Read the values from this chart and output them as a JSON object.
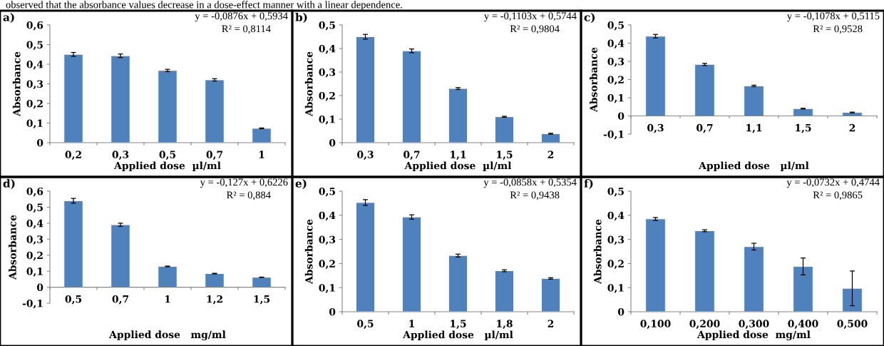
{
  "chart_data": [
    {
      "type": "bar",
      "title": "a)",
      "xlabel": "Applied dose  µl/ml",
      "ylabel": "Absorbance",
      "categories": [
        "0,2",
        "0,3",
        "0,5",
        "0,7",
        "1"
      ],
      "color": "#4f81bd",
      "values": [
        0.45,
        0.443,
        0.368,
        0.32,
        0.073
      ],
      "errors": [
        0.01,
        0.009,
        0.006,
        0.006,
        0.002
      ],
      "ylim": [
        0,
        0.6
      ],
      "yticks": [
        {
          "value": 0,
          "label": "0"
        },
        {
          "value": 0.1,
          "label": "0,1"
        },
        {
          "value": 0.2,
          "label": "0,2"
        },
        {
          "value": 0.3,
          "label": "0,3"
        },
        {
          "value": 0.4,
          "label": "0,4"
        },
        {
          "value": 0.5,
          "label": "0,5"
        },
        {
          "value": 0.6,
          "label": "0,6"
        }
      ],
      "annotations": [
        "y = -0,0876x + 0,5934",
        "R² = 0,8114",
        "observed that the absorbance values decrease in a dose-effect manner with a linear dependence."
      ]
    },
    {
      "type": "bar",
      "title": "b)",
      "xlabel": "Applied dose  µl/ml",
      "ylabel": "Absorbance",
      "categories": [
        "0,3",
        "0,7",
        "1,1",
        "1,5",
        "2"
      ],
      "color": "#4f81bd",
      "values": [
        0.45,
        0.39,
        0.23,
        0.11,
        0.038
      ],
      "errors": [
        0.01,
        0.008,
        0.004,
        0.002,
        0.002
      ],
      "ylim": [
        0,
        0.5
      ],
      "yticks": [
        {
          "value": 0,
          "label": "0"
        },
        {
          "value": 0.1,
          "label": "0,1"
        },
        {
          "value": 0.2,
          "label": "0,2"
        },
        {
          "value": 0.3,
          "label": "0,3"
        },
        {
          "value": 0.4,
          "label": "0,4"
        },
        {
          "value": 0.5,
          "label": "0,5"
        }
      ],
      "annotations": [
        "y = -0,1103x + 0,5744",
        "R² = 0,9804"
      ]
    },
    {
      "type": "bar",
      "title": "c)",
      "xlabel": "Applied dose   µl/ml",
      "ylabel": "Absorbance",
      "categories": [
        "0,3",
        "0,7",
        "1,1",
        "1,5",
        "2"
      ],
      "color": "#4f81bd",
      "values": [
        0.438,
        0.283,
        0.165,
        0.04,
        0.019
      ],
      "errors": [
        0.01,
        0.006,
        0.004,
        0.002,
        0.002
      ],
      "ylim": [
        -0.1,
        0.5
      ],
      "yticks": [
        {
          "value": -0.1,
          "label": "-0,1"
        },
        {
          "value": 0,
          "label": "0"
        },
        {
          "value": 0.1,
          "label": "0,1"
        },
        {
          "value": 0.2,
          "label": "0,2"
        },
        {
          "value": 0.3,
          "label": "0,3"
        },
        {
          "value": 0.4,
          "label": "0,4"
        },
        {
          "value": 0.5,
          "label": "0,5"
        }
      ],
      "annotations": [
        "y = -0,1078x + 0,5115",
        "R² = 0,9528"
      ]
    },
    {
      "type": "bar",
      "title": "d)",
      "xlabel": "Applied dose   mg/ml",
      "ylabel": "Absorbance",
      "categories": [
        "0,5",
        "0,7",
        "1",
        "1,2",
        "1,5"
      ],
      "color": "#4f81bd",
      "values": [
        0.54,
        0.39,
        0.13,
        0.085,
        0.062
      ],
      "errors": [
        0.015,
        0.01,
        0.002,
        0.002,
        0.001
      ],
      "ylim": [
        -0.1,
        0.6
      ],
      "yticks": [
        {
          "value": -0.1,
          "label": "-0,1"
        },
        {
          "value": 0,
          "label": "0"
        },
        {
          "value": 0.1,
          "label": "0,1"
        },
        {
          "value": 0.2,
          "label": "0,2"
        },
        {
          "value": 0.3,
          "label": "0,3"
        },
        {
          "value": 0.4,
          "label": "0,4"
        },
        {
          "value": 0.5,
          "label": "0,5"
        },
        {
          "value": 0.6,
          "label": "0,6"
        }
      ],
      "annotations": [
        "y = -0,127x + 0,6226",
        "R² = 0,884"
      ]
    },
    {
      "type": "bar",
      "title": "e)",
      "xlabel": "Applied dose   µl/ml",
      "ylabel": "Absorbance",
      "categories": [
        "0,5",
        "1",
        "1,5",
        "1,8",
        "2"
      ],
      "color": "#4f81bd",
      "values": [
        0.453,
        0.393,
        0.233,
        0.17,
        0.138
      ],
      "errors": [
        0.012,
        0.009,
        0.006,
        0.004,
        0.003
      ],
      "ylim": [
        0,
        0.5
      ],
      "yticks": [
        {
          "value": 0,
          "label": "0"
        },
        {
          "value": 0.1,
          "label": "0,1"
        },
        {
          "value": 0.2,
          "label": "0,2"
        },
        {
          "value": 0.3,
          "label": "0,3"
        },
        {
          "value": 0.4,
          "label": "0,4"
        },
        {
          "value": 0.5,
          "label": "0,5"
        }
      ],
      "annotations": [
        "y = -0,0858x + 0,5354",
        "R² = 0,9438"
      ]
    },
    {
      "type": "bar",
      "title": "f)",
      "xlabel": "Applied dose  mg/ml",
      "ylabel": "Absorbance",
      "categories": [
        "0,100",
        "0,200",
        "0,300",
        "0,400",
        "0,500"
      ],
      "color": "#4f81bd",
      "values": [
        0.385,
        0.336,
        0.27,
        0.188,
        0.097
      ],
      "errors": [
        0.006,
        0.004,
        0.014,
        0.035,
        0.072
      ],
      "ylim": [
        0,
        0.5
      ],
      "yticks": [
        {
          "value": 0,
          "label": "0"
        },
        {
          "value": 0.1,
          "label": "0,1"
        },
        {
          "value": 0.2,
          "label": "0,2"
        },
        {
          "value": 0.3,
          "label": "0,3"
        },
        {
          "value": 0.4,
          "label": "0,4"
        },
        {
          "value": 0.5,
          "label": "0,5"
        }
      ],
      "annotations": [
        "y = -0,0732x + 0,4744",
        "R² = 0,9865"
      ]
    }
  ]
}
